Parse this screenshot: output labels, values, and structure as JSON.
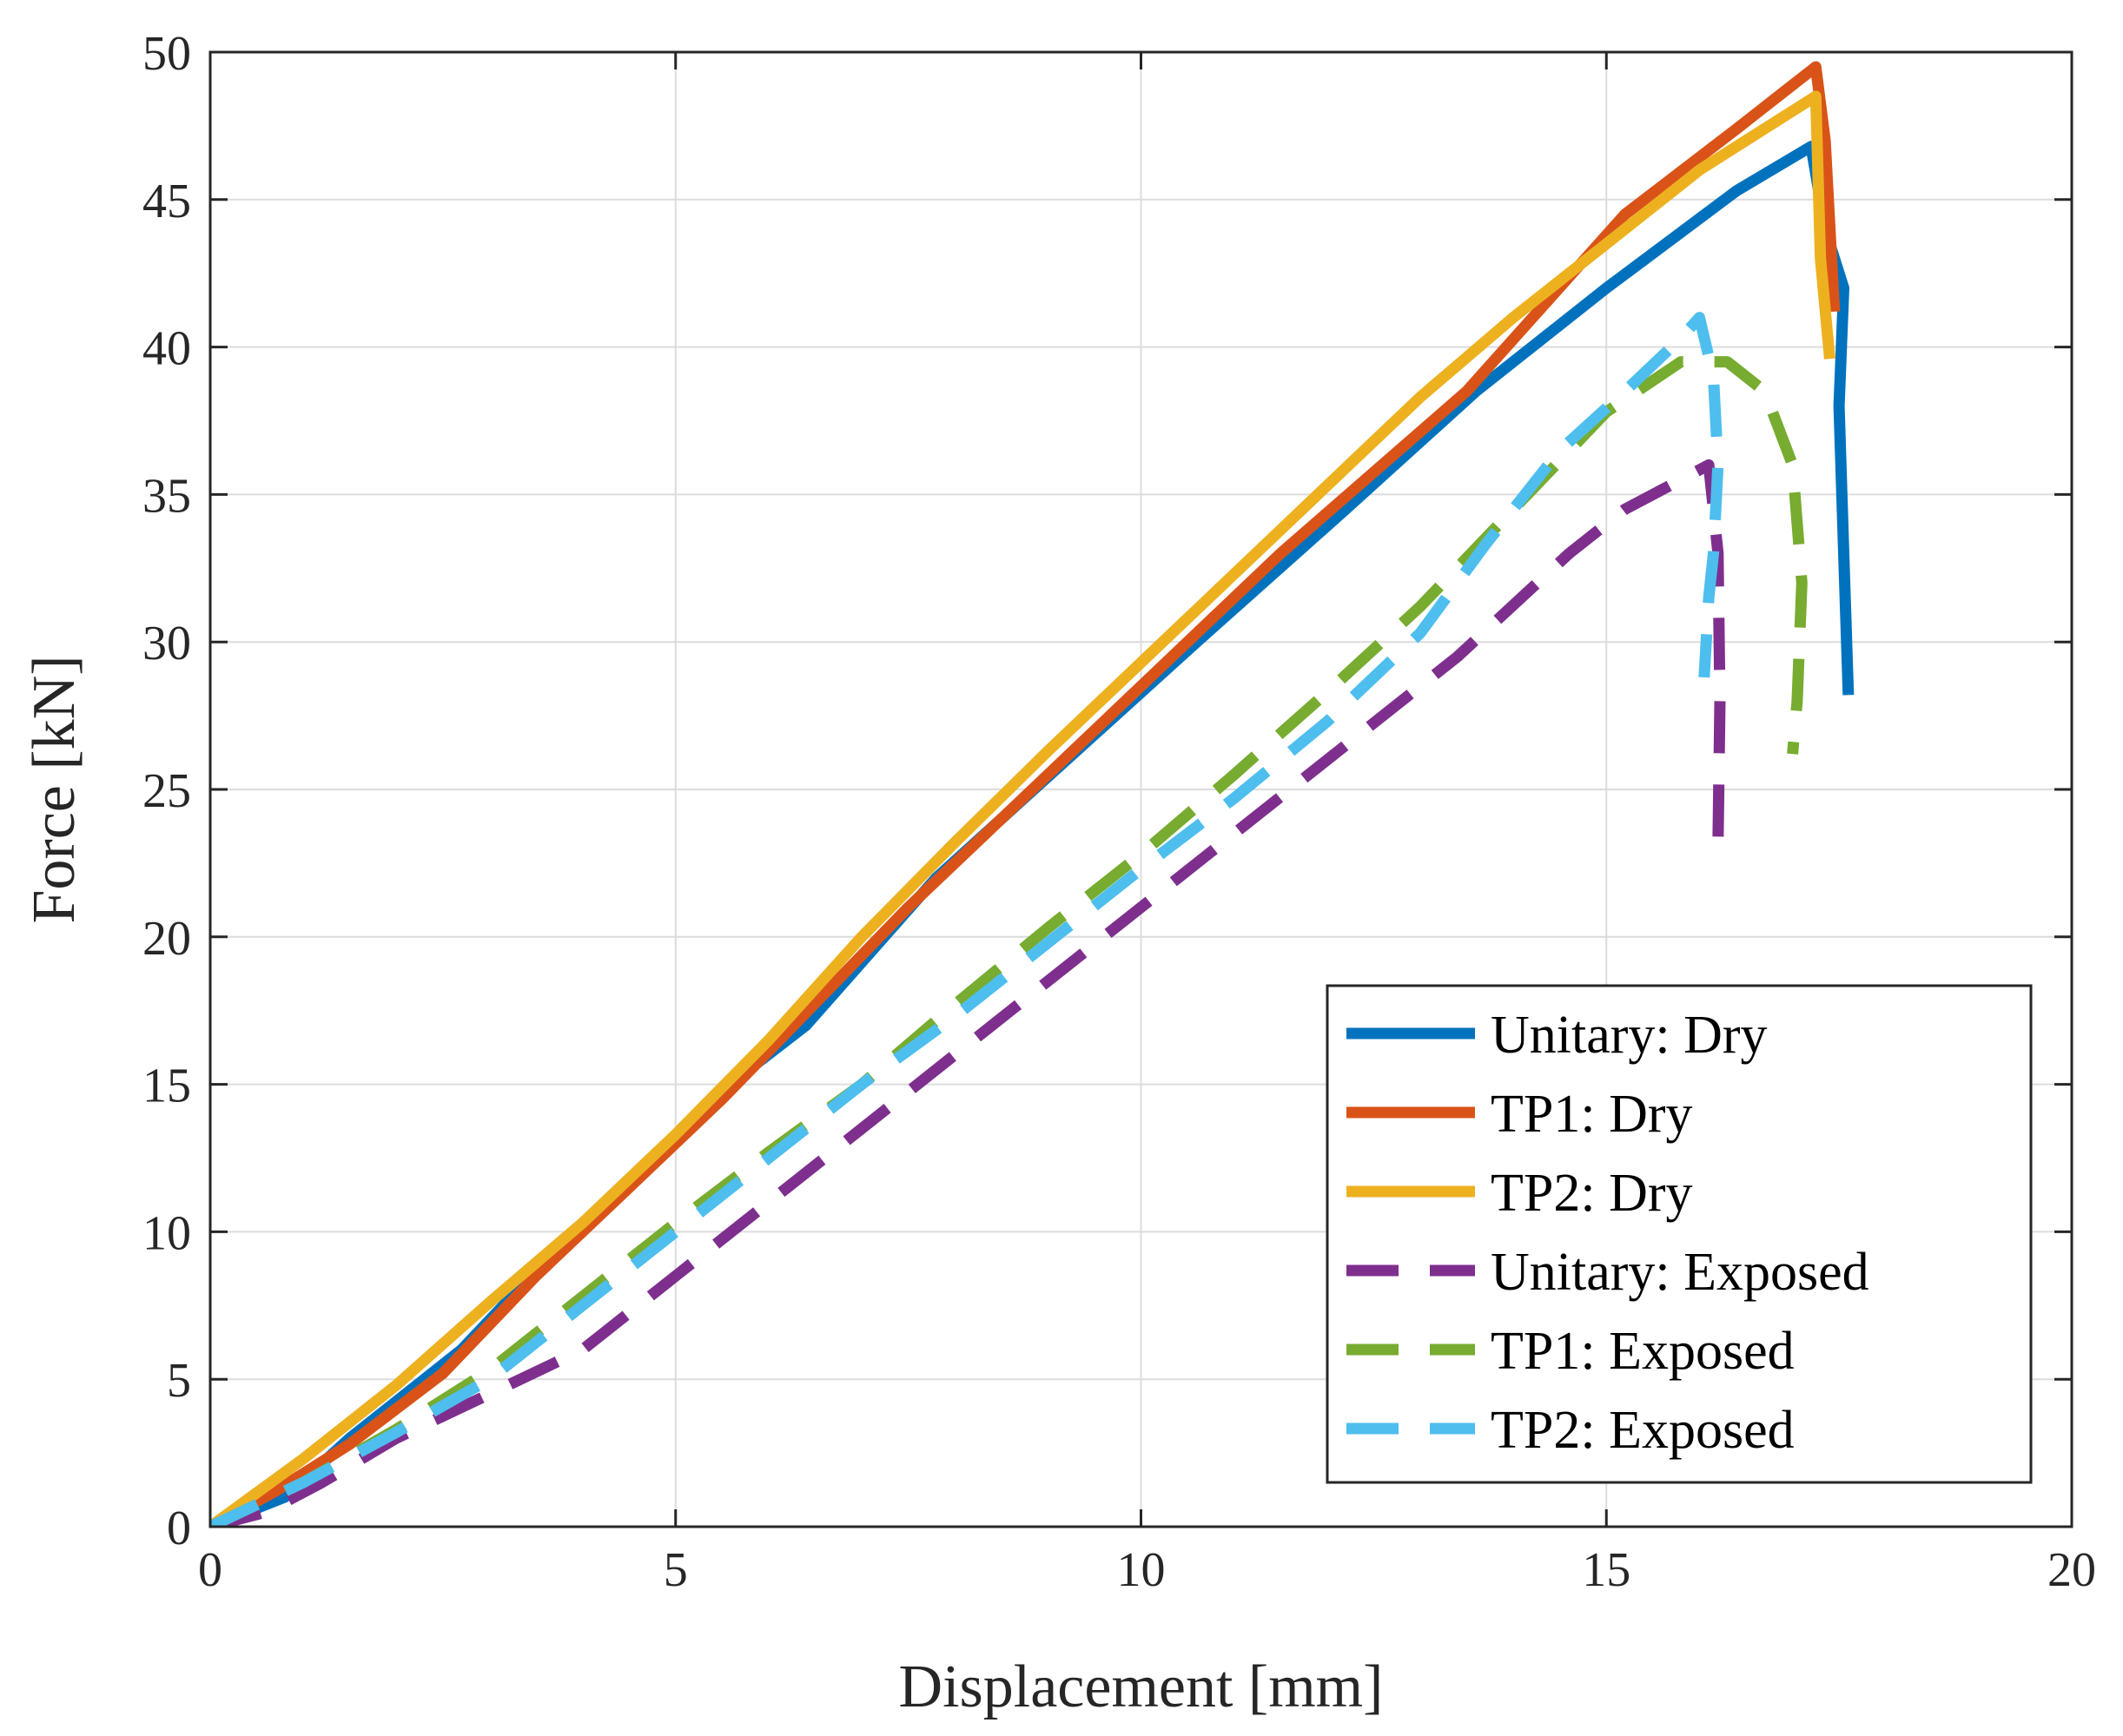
{
  "chart_data": {
    "type": "line",
    "title": "",
    "xlabel": "Displacement [mm]",
    "ylabel": "Force [kN]",
    "xlim": [
      0,
      20
    ],
    "ylim": [
      0,
      50
    ],
    "xticks": [
      0,
      5,
      10,
      15,
      20
    ],
    "yticks": [
      0,
      5,
      10,
      15,
      20,
      25,
      30,
      35,
      40,
      45,
      50
    ],
    "grid": true,
    "legend_position": "bottom-right",
    "series": [
      {
        "name": "Unitary: Dry",
        "color": "#0072BD",
        "style": "solid",
        "x": [
          0,
          0.8,
          1.5,
          2.7,
          3.6,
          4.6,
          5.5,
          6.4,
          7.8,
          9.2,
          10.6,
          12.2,
          13.6,
          15.0,
          16.4,
          17.2,
          17.35,
          17.55,
          17.5,
          17.55,
          17.6
        ],
        "y": [
          0,
          1.0,
          3.0,
          6.0,
          9.0,
          12.0,
          14.8,
          17.0,
          22.0,
          26.0,
          30.0,
          34.5,
          38.5,
          42.0,
          45.3,
          46.8,
          44.0,
          42.0,
          38.0,
          33.0,
          28.2
        ]
      },
      {
        "name": "TP1: Dry",
        "color": "#D95319",
        "style": "solid",
        "x": [
          0,
          0.7,
          1.5,
          2.5,
          3.5,
          4.5,
          5.5,
          7.5,
          9.5,
          11.5,
          13.5,
          15.2,
          16.4,
          17.25,
          17.35,
          17.45
        ],
        "y": [
          0,
          1.2,
          2.8,
          5.2,
          8.5,
          11.5,
          14.5,
          21.0,
          27.0,
          33.0,
          38.5,
          44.5,
          47.4,
          49.5,
          47.0,
          41.2
        ]
      },
      {
        "name": "TP2: Dry",
        "color": "#EDB120",
        "style": "solid",
        "x": [
          0,
          1.0,
          2.0,
          3.0,
          4.0,
          5.0,
          6.0,
          7.0,
          8.0,
          9.0,
          10.0,
          11.0,
          12.0,
          13.0,
          14.0,
          15.0,
          16.0,
          17.25,
          17.3,
          17.4
        ],
        "y": [
          0,
          2.3,
          4.8,
          7.6,
          10.3,
          13.3,
          16.5,
          20.0,
          23.2,
          26.3,
          29.3,
          32.3,
          35.3,
          38.3,
          41.0,
          43.5,
          46.0,
          48.5,
          43.0,
          39.6
        ]
      },
      {
        "name": "Unitary: Exposed",
        "color": "#7E2F8E",
        "style": "dashed",
        "x": [
          0,
          0.6,
          1.2,
          2.0,
          3.0,
          4.0,
          5.0,
          6.2,
          7.4,
          8.6,
          9.8,
          11.0,
          12.2,
          13.4,
          14.6,
          15.2,
          15.8,
          16.1,
          16.2,
          16.22,
          16.2
        ],
        "y": [
          0,
          0.5,
          1.5,
          3.0,
          4.5,
          6.0,
          8.5,
          11.5,
          14.5,
          17.5,
          20.5,
          23.5,
          26.5,
          29.5,
          33.0,
          34.5,
          35.5,
          36.0,
          33.0,
          28.0,
          23.2
        ]
      },
      {
        "name": "TP1: Exposed",
        "color": "#77AC30",
        "style": "dashed",
        "x": [
          0,
          1.0,
          2.0,
          3.0,
          4.0,
          5.0,
          6.0,
          7.0,
          8.0,
          9.0,
          10.0,
          11.0,
          12.0,
          13.0,
          14.0,
          15.0,
          15.8,
          16.3,
          16.7,
          17.0,
          17.1,
          17.05,
          17.0
        ],
        "y": [
          0,
          1.5,
          3.3,
          5.3,
          7.8,
          10.3,
          12.7,
          15.0,
          17.7,
          20.3,
          22.8,
          25.5,
          28.3,
          31.2,
          34.5,
          37.8,
          39.5,
          39.5,
          38.5,
          36.0,
          32.0,
          28.0,
          26.2
        ]
      },
      {
        "name": "TP2: Exposed",
        "color": "#4DBEEE",
        "style": "dashed",
        "x": [
          0,
          1.0,
          2.0,
          3.0,
          4.0,
          5.0,
          6.0,
          7.0,
          8.0,
          9.0,
          10.0,
          11.0,
          12.0,
          13.0,
          13.7,
          14.5,
          15.2,
          15.8,
          16.0,
          16.15,
          16.2,
          16.15,
          16.1,
          16.05
        ],
        "y": [
          0,
          1.5,
          3.2,
          5.0,
          7.5,
          10.0,
          12.5,
          15.0,
          17.3,
          19.8,
          22.3,
          24.7,
          27.3,
          30.3,
          33.3,
          36.5,
          38.5,
          40.3,
          41.0,
          39.0,
          36.0,
          33.0,
          31.5,
          28.8
        ]
      }
    ]
  }
}
